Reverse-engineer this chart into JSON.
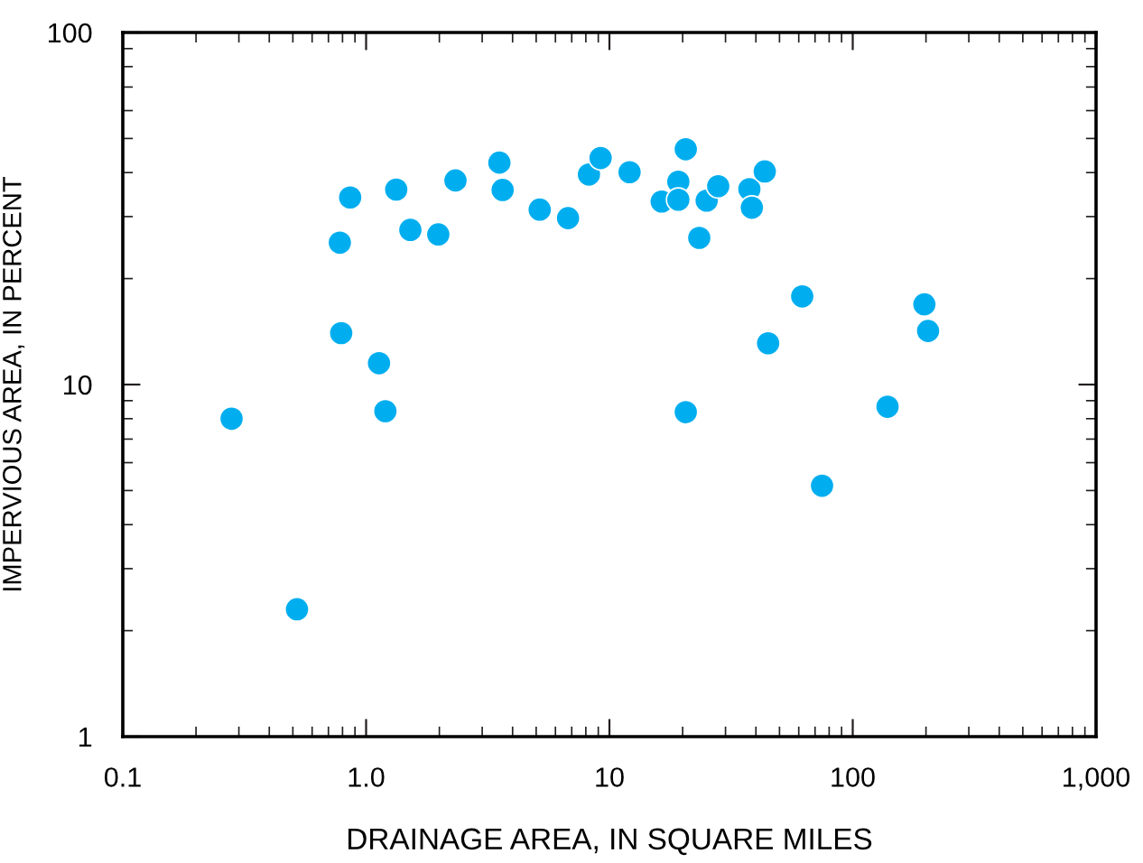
{
  "chart_data": {
    "type": "scatter",
    "xlabel": "DRAINAGE AREA, IN SQUARE MILES",
    "ylabel": "IMPERVIOUS AREA, IN PERCENT",
    "log": "xy",
    "grid": false,
    "marker": "circle",
    "xlim": [
      0.1,
      1000
    ],
    "ylim": [
      1,
      100
    ],
    "xticks": [
      {
        "value": 0.1,
        "label": "0.1"
      },
      {
        "value": 1,
        "label": "1.0"
      },
      {
        "value": 10,
        "label": "10"
      },
      {
        "value": 100,
        "label": "100"
      },
      {
        "value": 1000,
        "label": "1,000"
      }
    ],
    "yticks": [
      1,
      10,
      100
    ],
    "series": [
      {
        "color": "#00aeef",
        "x": [
          0.28,
          0.52,
          0.78,
          0.86,
          0.79,
          1.13,
          1.2,
          1.33,
          1.52,
          1.98,
          2.33,
          3.53,
          3.64,
          5.17,
          6.76,
          8.24,
          9.2,
          12.1,
          20.6,
          16.4,
          19.2,
          19.2,
          25.1,
          28,
          23.4,
          37.6,
          38.5,
          43.5,
          62,
          44.9,
          20.6,
          139,
          74.8,
          197,
          204
        ],
        "values": [
          8.0,
          2.3,
          25.3,
          34,
          14.0,
          11.5,
          8.4,
          35.8,
          27.5,
          26.7,
          38,
          42.7,
          35.7,
          31.4,
          29.7,
          39.5,
          44,
          40.1,
          46.6,
          33.1,
          37.7,
          33.5,
          33.3,
          36.6,
          26.1,
          35.9,
          31.8,
          40.3,
          17.8,
          13.1,
          8.35,
          8.65,
          5.16,
          16.9,
          14.2
        ]
      }
    ]
  }
}
